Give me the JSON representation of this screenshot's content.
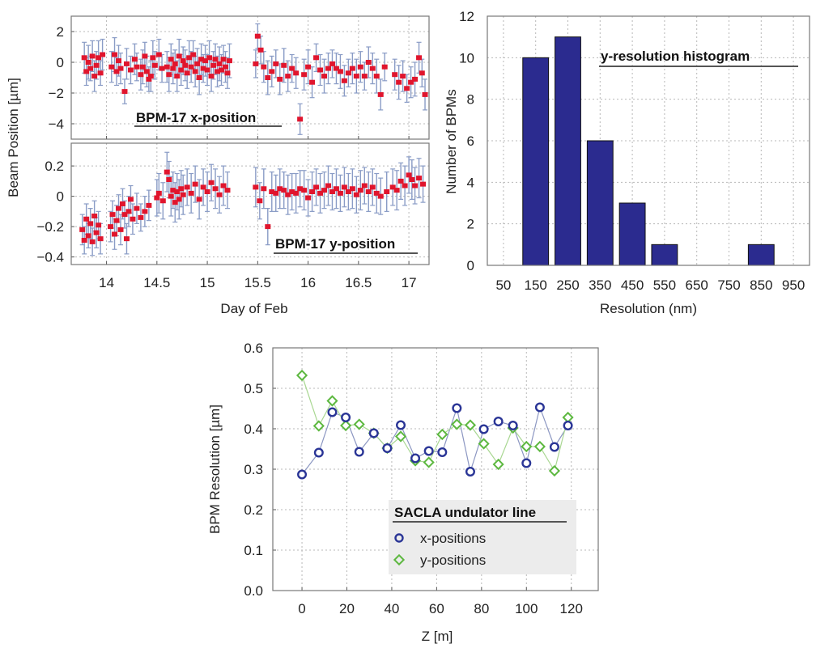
{
  "chart_data": [
    {
      "type": "scatter",
      "panel": "x-position",
      "annotation": "BPM-17 x-position",
      "ylabel": "Beam Position [µm]",
      "ylim": [
        -5,
        3
      ],
      "yticks": [
        {
          "v": 2,
          "label": "2"
        },
        {
          "v": 0,
          "label": "0"
        },
        {
          "v": -2,
          "label": "−2"
        },
        {
          "v": -4,
          "label": "−4"
        }
      ],
      "xlim": [
        13.65,
        17.2
      ],
      "error_color": "#8a9cc6",
      "marker_color": "#e0152d",
      "points": [
        [
          13.78,
          0.3,
          1.0
        ],
        [
          13.8,
          -0.6,
          0.9
        ],
        [
          13.82,
          0.0,
          1.1
        ],
        [
          13.84,
          -0.4,
          0.8
        ],
        [
          13.86,
          0.4,
          1.0
        ],
        [
          13.88,
          -0.9,
          1.0
        ],
        [
          13.9,
          -0.2,
          0.9
        ],
        [
          13.92,
          0.3,
          1.1
        ],
        [
          13.94,
          -0.7,
          0.8
        ],
        [
          13.96,
          0.5,
          1.0
        ],
        [
          14.05,
          -0.3,
          1.0
        ],
        [
          14.08,
          0.5,
          1.1
        ],
        [
          14.1,
          -0.6,
          0.9
        ],
        [
          14.12,
          0.1,
          1.0
        ],
        [
          14.14,
          -0.4,
          1.0
        ],
        [
          14.18,
          -1.9,
          0.8
        ],
        [
          14.2,
          -0.1,
          1.0
        ],
        [
          14.24,
          -0.5,
          0.9
        ],
        [
          14.28,
          0.2,
          1.0
        ],
        [
          14.3,
          -0.3,
          0.9
        ],
        [
          14.34,
          -0.8,
          1.0
        ],
        [
          14.36,
          -0.3,
          1.1
        ],
        [
          14.38,
          0.4,
          0.9
        ],
        [
          14.4,
          -0.6,
          1.0
        ],
        [
          14.42,
          -1.1,
          0.8
        ],
        [
          14.44,
          -0.9,
          1.0
        ],
        [
          14.46,
          0.3,
          1.1
        ],
        [
          14.48,
          -0.2,
          0.9
        ],
        [
          14.52,
          0.5,
          1.0
        ],
        [
          14.55,
          -0.4,
          0.9
        ],
        [
          14.6,
          -0.3,
          1.0
        ],
        [
          14.62,
          -0.8,
          1.1
        ],
        [
          14.64,
          0.2,
          1.0
        ],
        [
          14.66,
          -0.4,
          1.0
        ],
        [
          14.68,
          -0.1,
          0.9
        ],
        [
          14.7,
          -0.9,
          1.0
        ],
        [
          14.72,
          0.4,
          1.1
        ],
        [
          14.74,
          -0.5,
          1.0
        ],
        [
          14.76,
          0.1,
          0.9
        ],
        [
          14.78,
          -0.2,
          1.0
        ],
        [
          14.8,
          -0.7,
          1.0
        ],
        [
          14.82,
          0.3,
          1.1
        ],
        [
          14.84,
          -0.3,
          1.0
        ],
        [
          14.86,
          0.5,
          0.9
        ],
        [
          14.88,
          -0.6,
          1.0
        ],
        [
          14.9,
          -0.1,
          1.0
        ],
        [
          14.92,
          -1.0,
          1.1
        ],
        [
          14.94,
          0.2,
          1.0
        ],
        [
          14.96,
          -0.4,
          0.9
        ],
        [
          14.98,
          0.1,
          1.0
        ],
        [
          15.0,
          -0.5,
          1.0
        ],
        [
          15.02,
          0.3,
          1.1
        ],
        [
          15.04,
          -0.9,
          1.0
        ],
        [
          15.06,
          -0.2,
          0.9
        ],
        [
          15.08,
          0.2,
          1.0
        ],
        [
          15.1,
          -0.6,
          1.0
        ],
        [
          15.12,
          -0.1,
          1.1
        ],
        [
          15.14,
          -0.5,
          1.0
        ],
        [
          15.16,
          0.2,
          0.9
        ],
        [
          15.18,
          -0.3,
          1.0
        ],
        [
          15.2,
          -0.7,
          1.0
        ],
        [
          15.22,
          0.1,
          1.1
        ],
        [
          15.48,
          -0.1,
          0.9
        ],
        [
          15.5,
          1.7,
          0.8
        ],
        [
          15.53,
          0.8,
          0.9
        ],
        [
          15.56,
          -0.3,
          1.0
        ],
        [
          15.6,
          -1.0,
          1.1
        ],
        [
          15.64,
          -0.6,
          1.0
        ],
        [
          15.68,
          -0.1,
          0.9
        ],
        [
          15.72,
          -1.1,
          1.0
        ],
        [
          15.76,
          -0.2,
          1.1
        ],
        [
          15.8,
          -0.9,
          1.0
        ],
        [
          15.84,
          -0.4,
          0.9
        ],
        [
          15.88,
          -0.7,
          1.0
        ],
        [
          15.92,
          -3.7,
          1.0
        ],
        [
          15.96,
          -0.8,
          1.0
        ],
        [
          16.0,
          -0.3,
          1.1
        ],
        [
          16.04,
          -1.3,
          1.0
        ],
        [
          16.08,
          0.3,
          0.9
        ],
        [
          16.12,
          -0.5,
          1.0
        ],
        [
          16.16,
          -0.9,
          1.1
        ],
        [
          16.2,
          -0.4,
          1.0
        ],
        [
          16.24,
          -0.1,
          0.9
        ],
        [
          16.28,
          -0.4,
          1.0
        ],
        [
          16.32,
          -0.6,
          1.1
        ],
        [
          16.36,
          -1.2,
          1.0
        ],
        [
          16.4,
          -0.7,
          0.9
        ],
        [
          16.44,
          -0.4,
          1.0
        ],
        [
          16.48,
          -0.9,
          1.1
        ],
        [
          16.52,
          -0.3,
          1.0
        ],
        [
          16.56,
          -0.9,
          0.9
        ],
        [
          16.6,
          0.0,
          1.0
        ],
        [
          16.64,
          -0.4,
          1.0
        ],
        [
          16.68,
          -0.9,
          1.1
        ],
        [
          16.72,
          -2.1,
          1.0
        ],
        [
          16.76,
          -0.3,
          0.9
        ],
        [
          16.86,
          -0.8,
          1.0
        ],
        [
          16.9,
          -1.3,
          1.1
        ],
        [
          16.94,
          -0.9,
          1.0
        ],
        [
          16.98,
          -1.7,
          0.9
        ],
        [
          17.02,
          -1.3,
          1.0
        ],
        [
          17.06,
          -1.1,
          1.1
        ],
        [
          17.1,
          0.3,
          1.0
        ],
        [
          17.13,
          -0.7,
          0.9
        ],
        [
          17.16,
          -2.1,
          1.0
        ]
      ]
    },
    {
      "type": "scatter",
      "panel": "y-position",
      "annotation": "BPM-17 y-position",
      "xlabel": "Day of Feb",
      "xticks": [
        "14",
        "14.5",
        "15",
        "15.5",
        "16",
        "16.5",
        "17"
      ],
      "ylim": [
        -0.45,
        0.35
      ],
      "yticks": [
        {
          "v": 0.2,
          "label": "0.2"
        },
        {
          "v": 0,
          "label": "0"
        },
        {
          "v": -0.2,
          "label": "−0.2"
        },
        {
          "v": -0.4,
          "label": "−0.4"
        }
      ],
      "xlim": [
        13.65,
        17.2
      ],
      "error_color": "#8a9cc6",
      "marker_color": "#e0152d",
      "points": [
        [
          13.76,
          -0.22,
          0.1
        ],
        [
          13.78,
          -0.29,
          0.09
        ],
        [
          13.8,
          -0.15,
          0.1
        ],
        [
          13.82,
          -0.26,
          0.08
        ],
        [
          13.84,
          -0.18,
          0.1
        ],
        [
          13.86,
          -0.3,
          0.09
        ],
        [
          13.88,
          -0.13,
          0.1
        ],
        [
          13.9,
          -0.24,
          0.1
        ],
        [
          13.92,
          -0.19,
          0.09
        ],
        [
          13.94,
          -0.28,
          0.1
        ],
        [
          14.04,
          -0.2,
          0.1
        ],
        [
          14.06,
          -0.12,
          0.09
        ],
        [
          14.08,
          -0.25,
          0.1
        ],
        [
          14.1,
          -0.16,
          0.1
        ],
        [
          14.12,
          -0.08,
          0.09
        ],
        [
          14.14,
          -0.22,
          0.1
        ],
        [
          14.16,
          -0.05,
          0.1
        ],
        [
          14.18,
          -0.12,
          0.09
        ],
        [
          14.2,
          -0.28,
          0.1
        ],
        [
          14.22,
          -0.1,
          0.1
        ],
        [
          14.24,
          -0.02,
          0.09
        ],
        [
          14.26,
          -0.15,
          0.1
        ],
        [
          14.3,
          -0.08,
          0.1
        ],
        [
          14.34,
          -0.14,
          0.09
        ],
        [
          14.38,
          -0.1,
          0.1
        ],
        [
          14.42,
          -0.06,
          0.1
        ],
        [
          14.5,
          -0.01,
          0.12
        ],
        [
          14.52,
          0.02,
          0.13
        ],
        [
          14.56,
          -0.03,
          0.12
        ],
        [
          14.6,
          0.16,
          0.13
        ],
        [
          14.62,
          0.11,
          0.12
        ],
        [
          14.64,
          0.0,
          0.13
        ],
        [
          14.66,
          0.04,
          0.12
        ],
        [
          14.68,
          -0.04,
          0.13
        ],
        [
          14.7,
          0.03,
          0.12
        ],
        [
          14.72,
          -0.02,
          0.13
        ],
        [
          14.74,
          0.05,
          0.12
        ],
        [
          14.76,
          0.01,
          0.13
        ],
        [
          14.8,
          0.06,
          0.12
        ],
        [
          14.84,
          0.02,
          0.13
        ],
        [
          14.88,
          0.08,
          0.12
        ],
        [
          14.92,
          -0.02,
          0.13
        ],
        [
          14.96,
          0.06,
          0.12
        ],
        [
          15.0,
          0.03,
          0.13
        ],
        [
          15.04,
          0.09,
          0.12
        ],
        [
          15.08,
          0.05,
          0.13
        ],
        [
          15.12,
          0.01,
          0.12
        ],
        [
          15.16,
          0.07,
          0.13
        ],
        [
          15.2,
          0.04,
          0.12
        ],
        [
          15.48,
          0.06,
          0.13
        ],
        [
          15.52,
          -0.03,
          0.12
        ],
        [
          15.56,
          0.05,
          0.13
        ],
        [
          15.6,
          -0.2,
          0.12
        ],
        [
          15.64,
          0.03,
          0.13
        ],
        [
          15.68,
          0.02,
          0.12
        ],
        [
          15.72,
          0.05,
          0.13
        ],
        [
          15.76,
          0.04,
          0.12
        ],
        [
          15.8,
          0.01,
          0.13
        ],
        [
          15.84,
          0.03,
          0.12
        ],
        [
          15.88,
          0.02,
          0.13
        ],
        [
          15.92,
          0.05,
          0.12
        ],
        [
          15.96,
          0.04,
          0.13
        ],
        [
          16.0,
          -0.01,
          0.12
        ],
        [
          16.04,
          0.03,
          0.13
        ],
        [
          16.08,
          0.06,
          0.12
        ],
        [
          16.12,
          0.02,
          0.13
        ],
        [
          16.16,
          0.04,
          0.12
        ],
        [
          16.2,
          0.07,
          0.13
        ],
        [
          16.24,
          0.03,
          0.12
        ],
        [
          16.28,
          0.05,
          0.13
        ],
        [
          16.32,
          0.02,
          0.12
        ],
        [
          16.36,
          0.06,
          0.13
        ],
        [
          16.4,
          0.03,
          0.12
        ],
        [
          16.44,
          0.05,
          0.13
        ],
        [
          16.48,
          0.01,
          0.12
        ],
        [
          16.52,
          0.04,
          0.13
        ],
        [
          16.56,
          0.07,
          0.12
        ],
        [
          16.6,
          0.03,
          0.13
        ],
        [
          16.64,
          0.06,
          0.12
        ],
        [
          16.68,
          0.02,
          0.13
        ],
        [
          16.72,
          0.0,
          0.12
        ],
        [
          16.78,
          0.03,
          0.13
        ],
        [
          16.84,
          0.06,
          0.12
        ],
        [
          16.88,
          0.04,
          0.13
        ],
        [
          16.92,
          0.1,
          0.12
        ],
        [
          16.96,
          0.07,
          0.13
        ],
        [
          17.0,
          0.14,
          0.12
        ],
        [
          17.03,
          0.11,
          0.13
        ],
        [
          17.06,
          0.07,
          0.12
        ],
        [
          17.1,
          0.12,
          0.13
        ],
        [
          17.14,
          0.08,
          0.12
        ]
      ]
    },
    {
      "type": "bar",
      "annotation": "y-resolution histogram",
      "xlabel": "Resolution (nm)",
      "ylabel": "Number of BPMs",
      "xticks": [
        "50",
        "150",
        "250",
        "350",
        "450",
        "550",
        "650",
        "750",
        "850",
        "950"
      ],
      "yticks": [
        "0",
        "2",
        "4",
        "6",
        "8",
        "10",
        "12"
      ],
      "ylim": [
        0,
        12
      ],
      "bar_color": "#2b2b8f",
      "bars": [
        {
          "x": 150,
          "value": 10
        },
        {
          "x": 250,
          "value": 11
        },
        {
          "x": 350,
          "value": 6
        },
        {
          "x": 450,
          "value": 3
        },
        {
          "x": 550,
          "value": 1
        },
        {
          "x": 850,
          "value": 1
        }
      ]
    },
    {
      "type": "line",
      "annotation": "SACLA undulator line",
      "xlabel": "Z [m]",
      "ylabel": "BPM Resolution [µm]",
      "xticks": [
        "0",
        "20",
        "40",
        "60",
        "80",
        "100",
        "120"
      ],
      "yticks": [
        "0.0",
        "0.1",
        "0.2",
        "0.3",
        "0.4",
        "0.5",
        "0.6"
      ],
      "xlim": [
        -13,
        132
      ],
      "ylim": [
        0,
        0.6
      ],
      "series": [
        {
          "name": "x-positions",
          "color": "#2a3596",
          "x": [
            0,
            7.5,
            13.5,
            19.5,
            25.5,
            32,
            38,
            44,
            50.5,
            56.5,
            62.5,
            69,
            75,
            81,
            87.5,
            94,
            100,
            106,
            112.5,
            118.5
          ],
          "y": [
            0.287,
            0.341,
            0.441,
            0.428,
            0.343,
            0.389,
            0.352,
            0.409,
            0.327,
            0.345,
            0.342,
            0.451,
            0.294,
            0.399,
            0.418,
            0.408,
            0.315,
            0.453,
            0.355,
            0.408
          ]
        },
        {
          "name": "y-positions",
          "color": "#5db840",
          "x": [
            0,
            7.5,
            13.5,
            19.5,
            25.5,
            32,
            38,
            44,
            50.5,
            56.5,
            62.5,
            69,
            75,
            81,
            87.5,
            94,
            100,
            106,
            112.5,
            118.5
          ],
          "y": [
            0.532,
            0.407,
            0.469,
            0.408,
            0.411,
            0.389,
            0.352,
            0.381,
            0.321,
            0.317,
            0.386,
            0.411,
            0.409,
            0.363,
            0.312,
            0.402,
            0.356,
            0.356,
            0.296,
            0.428
          ]
        }
      ]
    }
  ]
}
